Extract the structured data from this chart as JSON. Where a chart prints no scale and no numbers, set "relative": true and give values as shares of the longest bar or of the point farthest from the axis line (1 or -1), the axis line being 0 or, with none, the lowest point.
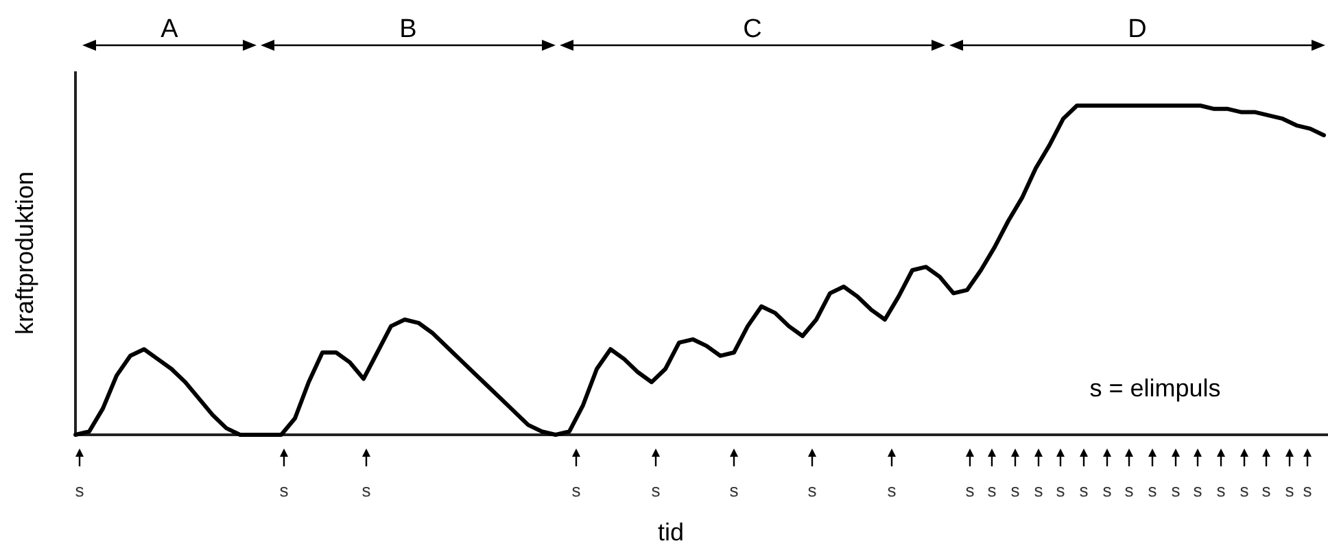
{
  "chart_data": {
    "type": "line",
    "relative": true,
    "xlabel": "tid",
    "ylabel": "kraftproduktion",
    "line_style": "solid",
    "categories": [
      null,
      null,
      null,
      null,
      null,
      null,
      null,
      null,
      null,
      null,
      null,
      null,
      null,
      null,
      null,
      null,
      null,
      null,
      null,
      null,
      null,
      null,
      null,
      null,
      null,
      null,
      null,
      null,
      null,
      null,
      null,
      null,
      null,
      null,
      null,
      null,
      null,
      null,
      null,
      null,
      null,
      null,
      null,
      null,
      null,
      null,
      null,
      null,
      null,
      null,
      null,
      null,
      null,
      null,
      null,
      null,
      null,
      null,
      null,
      null,
      null,
      null,
      null,
      null,
      null,
      null,
      null,
      null,
      null,
      null,
      null,
      null,
      null,
      null,
      null,
      null,
      null,
      null,
      null,
      null,
      null,
      null,
      null,
      null,
      null,
      null,
      null,
      null,
      null,
      null,
      null,
      null
    ],
    "series": [
      {
        "color": "#000000",
        "values": [
          0,
          0.01,
          0.08,
          0.18,
          0.24,
          0.26,
          0.23,
          0.2,
          0.16,
          0.11,
          0.06,
          0.02,
          0,
          0,
          0,
          0,
          0.05,
          0.16,
          0.25,
          0.25,
          0.22,
          0.17,
          0.25,
          0.33,
          0.35,
          0.34,
          0.31,
          0.27,
          0.23,
          0.19,
          0.15,
          0.11,
          0.07,
          0.03,
          0.01,
          0,
          0.01,
          0.09,
          0.2,
          0.26,
          0.23,
          0.19,
          0.16,
          0.2,
          0.28,
          0.29,
          0.27,
          0.24,
          0.25,
          0.33,
          0.39,
          0.37,
          0.33,
          0.3,
          0.35,
          0.43,
          0.45,
          0.42,
          0.38,
          0.35,
          0.42,
          0.5,
          0.51,
          0.48,
          0.43,
          0.44,
          0.5,
          0.57,
          0.65,
          0.72,
          0.81,
          0.88,
          0.96,
          1,
          1,
          1,
          1,
          1,
          1,
          1,
          1,
          1,
          1,
          0.99,
          0.99,
          0.98,
          0.98,
          0.97,
          0.96,
          0.94,
          0.93,
          0.91
        ]
      }
    ],
    "annotations": [
      "A",
      "B",
      "C",
      "D",
      "s",
      "s",
      "s",
      "s",
      "s",
      "s",
      "s",
      "s",
      "s",
      "s",
      "s",
      "s",
      "s",
      "s",
      "s",
      "s",
      "s",
      "s",
      "s",
      "s",
      "s",
      "s",
      "s",
      "s",
      "s = elimpuls"
    ]
  }
}
